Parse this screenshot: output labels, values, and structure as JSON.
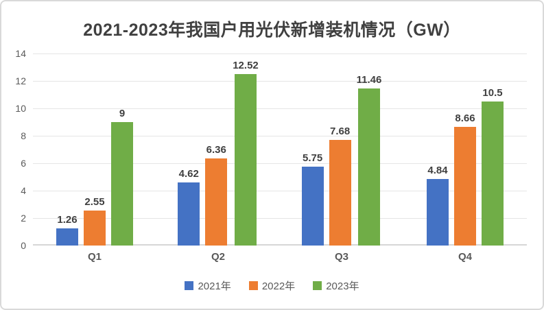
{
  "chart_data": {
    "type": "bar",
    "title": "2021-2023年我国户用光伏新增装机情况（GW）",
    "categories": [
      "Q1",
      "Q2",
      "Q3",
      "Q4"
    ],
    "series": [
      {
        "name": "2021年",
        "color": "#4472C4",
        "values": [
          1.26,
          4.62,
          5.75,
          4.84
        ],
        "labels": [
          "1.26",
          "4.62",
          "5.75",
          "4.84"
        ]
      },
      {
        "name": "2022年",
        "color": "#ED7D31",
        "values": [
          2.55,
          6.36,
          7.68,
          8.66
        ],
        "labels": [
          "2.55",
          "6.36",
          "7.68",
          "8.66"
        ]
      },
      {
        "name": "2023年",
        "color": "#70AD47",
        "values": [
          9,
          12.52,
          11.46,
          10.5
        ],
        "labels": [
          "9",
          "12.52",
          "11.46",
          "10.5"
        ]
      }
    ],
    "ylim": [
      0,
      14
    ],
    "ytick_step": 2,
    "yticks": [
      "0",
      "2",
      "4",
      "6",
      "8",
      "10",
      "12",
      "14"
    ],
    "grid": true,
    "data_labels": true,
    "legend_position": "bottom"
  },
  "style": {
    "title_color": "#404040",
    "data_label_color": "#3f3f3f",
    "axis_text_color": "#595959",
    "gridline_color": "#E5E5E5",
    "baseline_color": "#D6D6D6",
    "frame_border_color": "#D9D9D9",
    "background": "#FFFFFF"
  }
}
